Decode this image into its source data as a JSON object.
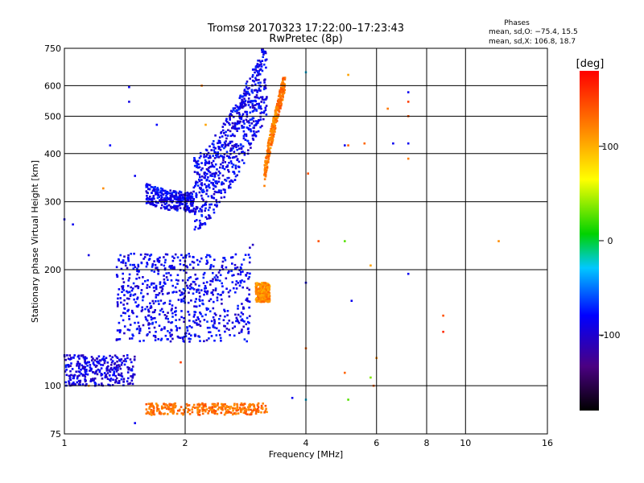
{
  "chart_data": {
    "type": "scatter",
    "title": "Tromsø 20170323 17:22:00–17:23:43",
    "subtitle": "RwPretec (8p)",
    "stats": {
      "heading": "Phases",
      "line1": "mean, sd,O: −75.4, 15.5",
      "line2": "mean, sd,X: 106.8, 18.7"
    },
    "xlabel": "Frequency [MHz]",
    "ylabel": "Stationary phase Virtual Height [km]",
    "x_scale": "log",
    "y_scale": "log",
    "xlim": [
      1,
      16
    ],
    "ylim": [
      75,
      750
    ],
    "x_ticks": [
      1,
      2,
      4,
      6,
      8,
      10,
      16
    ],
    "y_ticks": [
      75,
      100,
      200,
      300,
      400,
      500,
      600,
      750
    ],
    "x_gridlines": [
      2,
      4,
      6,
      8,
      10
    ],
    "y_gridlines": [
      100,
      200,
      300,
      400,
      500,
      600
    ],
    "grid": true,
    "colorbar": {
      "label": "[deg]",
      "range": [
        -180,
        180
      ],
      "ticks": [
        100,
        0,
        -100
      ],
      "colormap": "rainbow (black-purple-blue-cyan-green-yellow-orange-red)"
    },
    "clusters": [
      {
        "name": "O-mode F-trace",
        "f": [
          1.6,
          2.1
        ],
        "h": [
          300,
          330
        ],
        "phase": -95
      },
      {
        "name": "O-mode F-trace rising",
        "f": [
          2.1,
          3.2
        ],
        "h": [
          320,
          650
        ],
        "phase": -95
      },
      {
        "name": "X-mode F-trace",
        "f": [
          3.15,
          3.55
        ],
        "h": [
          345,
          620
        ],
        "phase": 120
      },
      {
        "name": "E-layer returns",
        "f": [
          1.35,
          2.9
        ],
        "h": [
          130,
          220
        ],
        "phase": -95
      },
      {
        "name": "Lower trace",
        "f": [
          1.0,
          1.5
        ],
        "h": [
          100,
          120
        ],
        "phase": -100
      },
      {
        "name": "Sporadic X cluster",
        "f": [
          3.0,
          3.25
        ],
        "h": [
          165,
          185
        ],
        "phase": 110
      },
      {
        "name": "Low-height echoes",
        "f": [
          1.6,
          3.2
        ],
        "h": [
          84,
          90
        ],
        "phase": 125
      }
    ],
    "sparse_points": [
      {
        "f": 1.0,
        "h": 270,
        "phase": -95
      },
      {
        "f": 1.05,
        "h": 262,
        "phase": -95
      },
      {
        "f": 1.15,
        "h": 218,
        "phase": -100
      },
      {
        "f": 1.25,
        "h": 325,
        "phase": 110
      },
      {
        "f": 1.3,
        "h": 420,
        "phase": -90
      },
      {
        "f": 1.45,
        "h": 545,
        "phase": -100
      },
      {
        "f": 1.45,
        "h": 595,
        "phase": -95
      },
      {
        "f": 1.5,
        "h": 350,
        "phase": -95
      },
      {
        "f": 1.7,
        "h": 475,
        "phase": -90
      },
      {
        "f": 2.25,
        "h": 475,
        "phase": 100
      },
      {
        "f": 2.2,
        "h": 600,
        "phase": 120
      },
      {
        "f": 4.0,
        "h": 650,
        "phase": -30
      },
      {
        "f": 4.05,
        "h": 355,
        "phase": 140
      },
      {
        "f": 4.3,
        "h": 237,
        "phase": 140
      },
      {
        "f": 5.0,
        "h": 237,
        "phase": 20
      },
      {
        "f": 5.0,
        "h": 420,
        "phase": -95
      },
      {
        "f": 5.1,
        "h": 640,
        "phase": 100
      },
      {
        "f": 5.1,
        "h": 420,
        "phase": 130
      },
      {
        "f": 5.2,
        "h": 166,
        "phase": -95
      },
      {
        "f": 5.0,
        "h": 108,
        "phase": 130
      },
      {
        "f": 5.6,
        "h": 425,
        "phase": 130
      },
      {
        "f": 5.8,
        "h": 205,
        "phase": 100
      },
      {
        "f": 5.8,
        "h": 105,
        "phase": 30
      },
      {
        "f": 6.4,
        "h": 523,
        "phase": 120
      },
      {
        "f": 6.6,
        "h": 425,
        "phase": -95
      },
      {
        "f": 7.2,
        "h": 577,
        "phase": -95
      },
      {
        "f": 7.2,
        "h": 545,
        "phase": 150
      },
      {
        "f": 7.2,
        "h": 500,
        "phase": 140
      },
      {
        "f": 7.2,
        "h": 425,
        "phase": -95
      },
      {
        "f": 7.2,
        "h": 388,
        "phase": 120
      },
      {
        "f": 7.2,
        "h": 195,
        "phase": -95
      },
      {
        "f": 8.8,
        "h": 152,
        "phase": 140
      },
      {
        "f": 8.8,
        "h": 138,
        "phase": 160
      },
      {
        "f": 12.1,
        "h": 237,
        "phase": 110
      },
      {
        "f": 4.0,
        "h": 125,
        "phase": 130
      },
      {
        "f": 4.0,
        "h": 92,
        "phase": -30
      },
      {
        "f": 3.7,
        "h": 93,
        "phase": -95
      },
      {
        "f": 5.1,
        "h": 92,
        "phase": 20
      },
      {
        "f": 6.0,
        "h": 118,
        "phase": 110
      },
      {
        "f": 5.9,
        "h": 100,
        "phase": 130
      },
      {
        "f": 1.95,
        "h": 115,
        "phase": 150
      },
      {
        "f": 1.15,
        "h": 100,
        "phase": 100
      },
      {
        "f": 1.5,
        "h": 80,
        "phase": -95
      },
      {
        "f": 3.2,
        "h": 180,
        "phase": 100
      },
      {
        "f": 4.0,
        "h": 185,
        "phase": -95
      },
      {
        "f": 2.9,
        "h": 228,
        "phase": -110
      },
      {
        "f": 2.95,
        "h": 232,
        "phase": -110
      }
    ]
  }
}
